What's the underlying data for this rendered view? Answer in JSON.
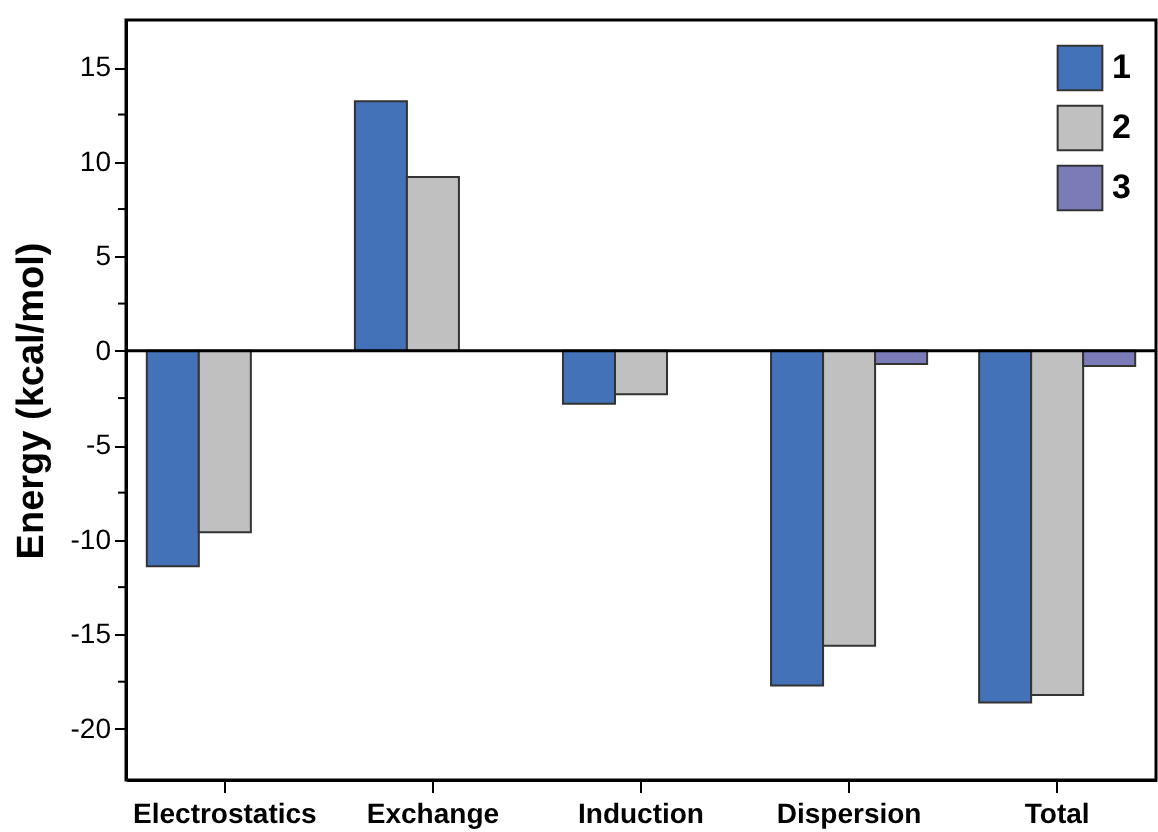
{
  "chart_data": {
    "type": "bar",
    "ylabel": "Energy (kcal/mol)",
    "categories": [
      "Electrostatics",
      "Exchange",
      "Induction",
      "Dispersion",
      "Total"
    ],
    "series": [
      {
        "name": "1",
        "color": "#4472b8",
        "values": [
          -11.4,
          13.2,
          -2.8,
          -17.7,
          -18.6
        ]
      },
      {
        "name": "2",
        "color": "#c0c0c0",
        "values": [
          -9.6,
          9.2,
          -2.3,
          -15.6,
          -18.2
        ]
      },
      {
        "name": "3",
        "color": "#7b7bb8",
        "values": [
          null,
          null,
          null,
          -0.7,
          -0.8
        ]
      }
    ],
    "ylim": [
      -22.7,
      17.5
    ],
    "yticks": [
      -20,
      {
        "value": -17.5,
        "label": null
      },
      -15,
      {
        "value": -12.5,
        "label": null
      },
      -10,
      {
        "value": -7.5,
        "label": null
      },
      -5,
      {
        "value": -2.5,
        "label": null
      },
      0,
      {
        "value": 2.5,
        "label": null
      },
      5,
      {
        "value": 7.5,
        "label": null
      },
      10,
      {
        "value": 12.5,
        "label": null
      },
      15
    ],
    "ref_lines": [
      {
        "axis": "y",
        "value": 0,
        "color": "#000000"
      }
    ],
    "legend": "top right",
    "grid": false
  }
}
